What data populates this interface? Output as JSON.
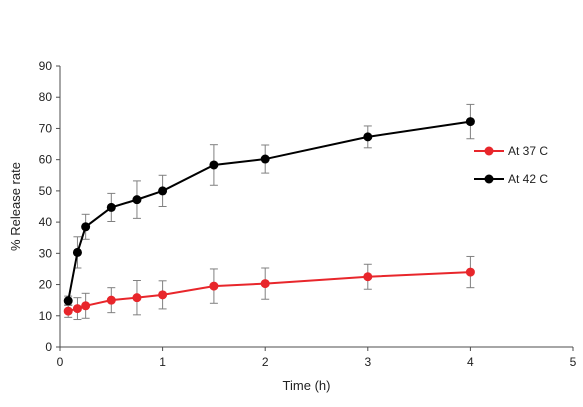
{
  "chart_data": {
    "type": "line",
    "title": "",
    "xlabel": "Time (h)",
    "ylabel": "% Release rate",
    "xlim": [
      0,
      5
    ],
    "ylim": [
      0,
      90
    ],
    "x_ticks": [
      0,
      1,
      2,
      3,
      4,
      5
    ],
    "y_ticks": [
      0,
      10,
      20,
      30,
      40,
      50,
      60,
      70,
      80,
      90
    ],
    "grid": false,
    "legend_position": "right",
    "series": [
      {
        "name": "At 37 C",
        "color": "#e8262b",
        "x": [
          0.08,
          0.17,
          0.25,
          0.5,
          0.75,
          1,
          1.5,
          2,
          3,
          4
        ],
        "y": [
          11.5,
          12.3,
          13.2,
          15,
          15.8,
          16.7,
          19.5,
          20.3,
          22.5,
          24
        ],
        "error": [
          2,
          3.5,
          4,
          4,
          5.5,
          4.5,
          5.5,
          5,
          4,
          5
        ]
      },
      {
        "name": "At 42 C",
        "color": "#000000",
        "x": [
          0.08,
          0.17,
          0.25,
          0.5,
          0.75,
          1,
          1.5,
          2,
          3,
          4
        ],
        "y": [
          14.8,
          30.3,
          38.5,
          44.7,
          47.2,
          50,
          58.3,
          60.2,
          67.3,
          72.2
        ],
        "error": [
          1.5,
          5,
          4,
          4.5,
          6,
          5,
          6.5,
          4.5,
          3.5,
          5.5
        ]
      }
    ]
  }
}
